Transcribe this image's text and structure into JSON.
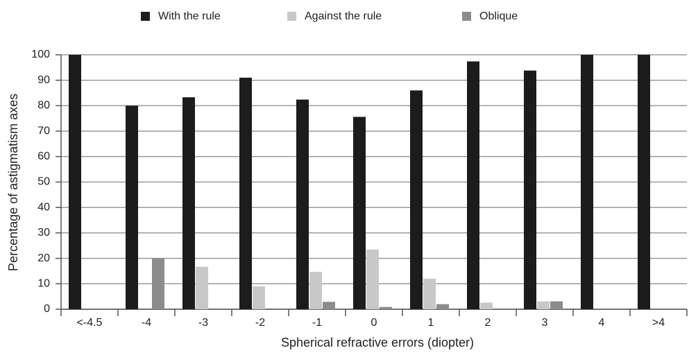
{
  "chart_data": {
    "type": "bar",
    "x_label": "Spherical refractive errors (diopter)",
    "y_label": "Percentage of astigmatism axes",
    "categories": [
      "<-4.5",
      "-4",
      "-3",
      "-2",
      "-1",
      "0",
      "1",
      "2",
      "3",
      "4",
      ">4"
    ],
    "series": [
      {
        "name": "With the rule",
        "color": "#1c1c1c",
        "values": [
          100,
          80,
          83.3,
          91,
          82.4,
          75.6,
          86,
          97.4,
          93.8,
          100,
          100
        ]
      },
      {
        "name": "Against the rule",
        "color": "#c8c8c8",
        "values": [
          0,
          0,
          16.7,
          9,
          14.7,
          23.5,
          12,
          2.6,
          3.1,
          0,
          0
        ]
      },
      {
        "name": "Oblique",
        "color": "#8c8c8c",
        "values": [
          0,
          20,
          0,
          0,
          2.9,
          0.9,
          2,
          0,
          3.1,
          0,
          0
        ]
      }
    ],
    "ylim": [
      0,
      100
    ],
    "yticks": [
      0,
      10,
      20,
      30,
      40,
      50,
      60,
      70,
      80,
      90,
      100
    ],
    "grid": true,
    "legend": "top"
  }
}
